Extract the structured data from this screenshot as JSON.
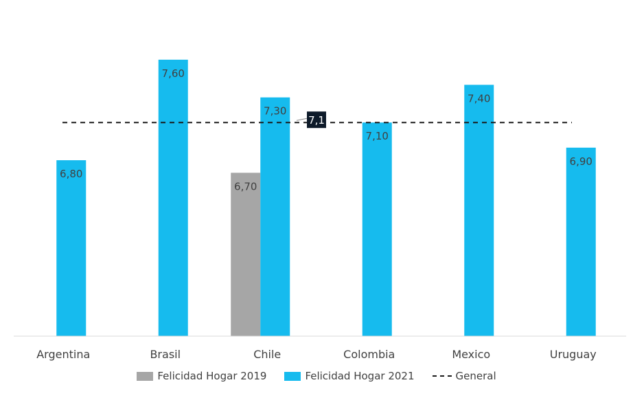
{
  "chart_data": {
    "type": "bar",
    "categories": [
      "Argentina",
      "Brasil",
      "Chile",
      "Colombia",
      "Mexico",
      "Uruguay"
    ],
    "series": [
      {
        "name": "Felicidad Hogar  2019",
        "values": [
          null,
          null,
          6.7,
          null,
          null,
          null
        ],
        "labels": [
          "",
          "",
          "6,70",
          "",
          "",
          ""
        ],
        "color": "#a6a6a6"
      },
      {
        "name": "Felicidad Hogar 2021",
        "values": [
          6.8,
          7.6,
          7.3,
          7.1,
          7.4,
          6.9
        ],
        "labels": [
          "6,80",
          "7,60",
          "7,30",
          "7,10",
          "7,40",
          "6,90"
        ],
        "color": "#16bbee"
      }
    ],
    "reference_line": {
      "name": "General",
      "value": 7.1,
      "label": "7,1",
      "style": "dashed",
      "color": "#1a1a1a"
    },
    "ylim": [
      5.4,
      7.9
    ],
    "grid": false,
    "legend_position": "bottom",
    "title": "",
    "xlabel": "",
    "ylabel": ""
  }
}
